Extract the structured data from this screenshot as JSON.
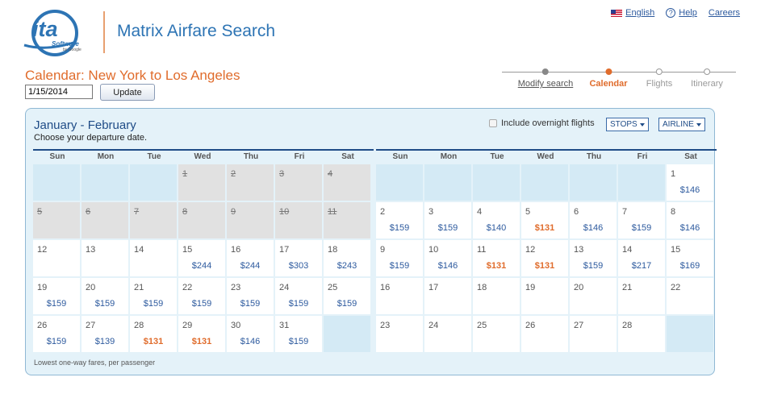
{
  "header": {
    "logo_text": "ita",
    "logo_sub": "Software",
    "logo_byline": "by Google",
    "app_title": "Matrix Airfare Search",
    "links": {
      "language": "English",
      "help": "Help",
      "careers": "Careers"
    }
  },
  "search": {
    "title": "Calendar: New York to Los Angeles",
    "date_value": "1/15/2014",
    "update_label": "Update"
  },
  "steps": [
    {
      "label": "Modify search",
      "state": "done"
    },
    {
      "label": "Calendar",
      "state": "active"
    },
    {
      "label": "Flights",
      "state": "pending"
    },
    {
      "label": "Itinerary",
      "state": "pending"
    }
  ],
  "panel": {
    "title": "January - February",
    "subtitle": "Choose your departure date.",
    "overnight_label": "Include overnight flights",
    "stops_label": "STOPS",
    "airline_label": "AIRLINE",
    "footnote": "Lowest one-way fares, per passenger"
  },
  "weekdays": [
    "Sun",
    "Mon",
    "Tue",
    "Wed",
    "Thu",
    "Fri",
    "Sat"
  ],
  "months": [
    {
      "name": "January",
      "days": [
        null,
        null,
        null,
        {
          "d": "1",
          "past": true
        },
        {
          "d": "2",
          "past": true
        },
        {
          "d": "3",
          "past": true
        },
        {
          "d": "4",
          "past": true
        },
        {
          "d": "5",
          "past": true
        },
        {
          "d": "6",
          "past": true
        },
        {
          "d": "7",
          "past": true
        },
        {
          "d": "8",
          "past": true
        },
        {
          "d": "9",
          "past": true
        },
        {
          "d": "10",
          "past": true
        },
        {
          "d": "11",
          "past": true
        },
        {
          "d": "12"
        },
        {
          "d": "13"
        },
        {
          "d": "14"
        },
        {
          "d": "15",
          "p": "$244"
        },
        {
          "d": "16",
          "p": "$244"
        },
        {
          "d": "17",
          "p": "$303"
        },
        {
          "d": "18",
          "p": "$243"
        },
        {
          "d": "19",
          "p": "$159"
        },
        {
          "d": "20",
          "p": "$159"
        },
        {
          "d": "21",
          "p": "$159"
        },
        {
          "d": "22",
          "p": "$159"
        },
        {
          "d": "23",
          "p": "$159"
        },
        {
          "d": "24",
          "p": "$159"
        },
        {
          "d": "25",
          "p": "$159"
        },
        {
          "d": "26",
          "p": "$159"
        },
        {
          "d": "27",
          "p": "$139"
        },
        {
          "d": "28",
          "p": "$131",
          "low": true
        },
        {
          "d": "29",
          "p": "$131",
          "low": true
        },
        {
          "d": "30",
          "p": "$146"
        },
        {
          "d": "31",
          "p": "$159"
        },
        null
      ]
    },
    {
      "name": "February",
      "days": [
        null,
        null,
        null,
        null,
        null,
        null,
        {
          "d": "1",
          "p": "$146"
        },
        {
          "d": "2",
          "p": "$159"
        },
        {
          "d": "3",
          "p": "$159"
        },
        {
          "d": "4",
          "p": "$140"
        },
        {
          "d": "5",
          "p": "$131",
          "low": true
        },
        {
          "d": "6",
          "p": "$146"
        },
        {
          "d": "7",
          "p": "$159"
        },
        {
          "d": "8",
          "p": "$146"
        },
        {
          "d": "9",
          "p": "$159"
        },
        {
          "d": "10",
          "p": "$146"
        },
        {
          "d": "11",
          "p": "$131",
          "low": true
        },
        {
          "d": "12",
          "p": "$131",
          "low": true
        },
        {
          "d": "13",
          "p": "$159"
        },
        {
          "d": "14",
          "p": "$217"
        },
        {
          "d": "15",
          "p": "$169"
        },
        {
          "d": "16"
        },
        {
          "d": "17"
        },
        {
          "d": "18"
        },
        {
          "d": "19"
        },
        {
          "d": "20"
        },
        {
          "d": "21"
        },
        {
          "d": "22"
        },
        {
          "d": "23"
        },
        {
          "d": "24"
        },
        {
          "d": "25"
        },
        {
          "d": "26"
        },
        {
          "d": "27"
        },
        {
          "d": "28"
        },
        null
      ]
    }
  ]
}
